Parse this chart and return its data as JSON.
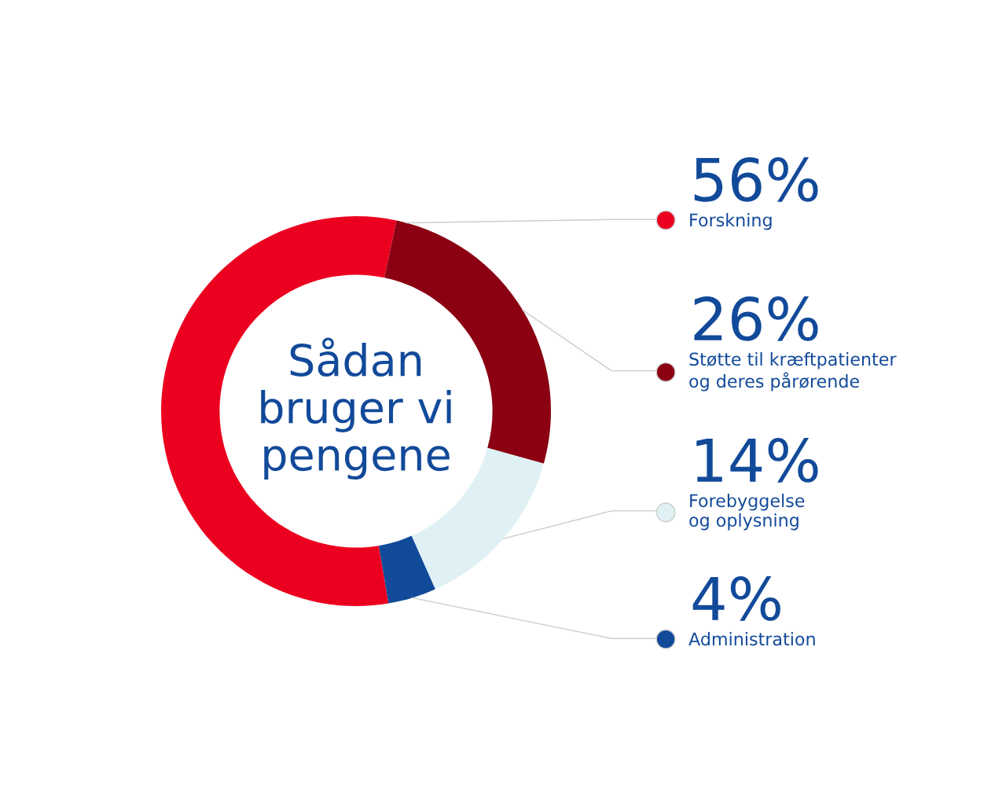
{
  "chart_data": {
    "type": "donut",
    "title": "Sådan\nbruger vi\npengene",
    "categories": [
      "Forskning",
      "Støtte til kræftpatienter\nog deres pårørende",
      "Forebyggelse\nog oplysning",
      "Administration"
    ],
    "values": [
      56,
      26,
      14,
      4
    ],
    "colors": [
      "#ec0020",
      "#8b0012",
      "#dff1f4",
      "#124a9a"
    ],
    "value_labels": [
      "56%",
      "26%",
      "14%",
      "4%"
    ],
    "legend": "right"
  }
}
